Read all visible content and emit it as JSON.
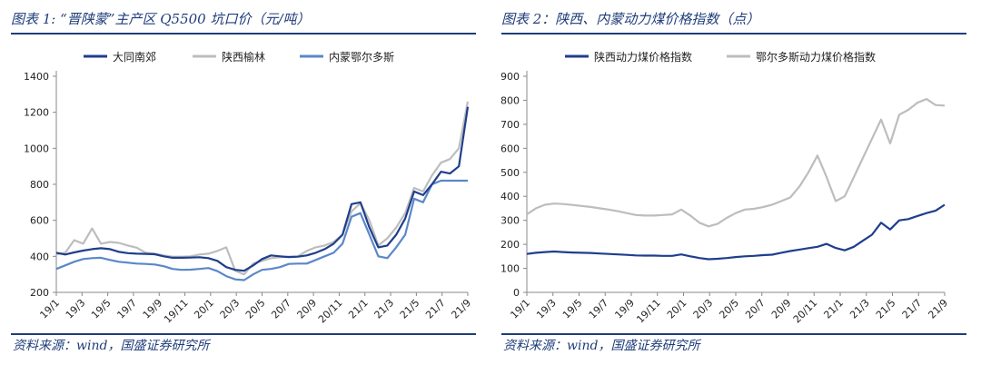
{
  "colors": {
    "navy": "#1f3e8c",
    "lightblue": "#5b87c9",
    "gray": "#bdbdbd",
    "rule": "#1f3d7a",
    "axis": "#888888"
  },
  "left": {
    "title": "图表 1: “晋陕蒙”主产区 Q5500 坑口价（元/吨）",
    "source": "资料来源：wind，国盛证券研究所"
  },
  "right": {
    "title": "图表 2：陕西、内蒙动力煤价格指数（点）",
    "source": "资料来源：wind，国盛证券研究所"
  },
  "chart_data": [
    {
      "type": "line",
      "title": "",
      "xlabel": "",
      "ylabel": "",
      "ylim": [
        200,
        1400
      ],
      "yticks": [
        200,
        400,
        600,
        800,
        1000,
        1200,
        1400
      ],
      "xticks": [
        "19/1",
        "19/3",
        "19/5",
        "19/7",
        "19/9",
        "19/11",
        "20/1",
        "20/3",
        "20/5",
        "20/7",
        "20/9",
        "20/11",
        "21/1",
        "21/3",
        "21/5",
        "21/7",
        "21/9"
      ],
      "legend_position": "top",
      "grid": false,
      "series": [
        {
          "name": "大同南郊",
          "color": "#1f3e8c",
          "values": [
            420,
            410,
            422,
            432,
            440,
            445,
            440,
            425,
            418,
            415,
            414,
            412,
            400,
            392,
            392,
            393,
            395,
            390,
            375,
            340,
            325,
            320,
            350,
            385,
            405,
            400,
            396,
            398,
            405,
            420,
            440,
            470,
            520,
            690,
            700,
            560,
            450,
            460,
            520,
            610,
            760,
            740,
            800,
            870,
            860,
            900,
            1230
          ]
        },
        {
          "name": "陕西榆林",
          "color": "#bdbdbd",
          "values": [
            412,
            420,
            490,
            470,
            555,
            470,
            480,
            475,
            460,
            448,
            420,
            415,
            405,
            398,
            398,
            400,
            410,
            415,
            430,
            450,
            320,
            300,
            360,
            375,
            390,
            395,
            398,
            400,
            430,
            450,
            460,
            480,
            520,
            650,
            695,
            600,
            460,
            500,
            560,
            640,
            780,
            760,
            850,
            920,
            940,
            1000,
            1260
          ]
        },
        {
          "name": "内蒙鄂尔多斯",
          "color": "#5b87c9",
          "values": [
            330,
            350,
            370,
            385,
            390,
            392,
            380,
            370,
            365,
            360,
            358,
            355,
            345,
            330,
            325,
            326,
            330,
            335,
            318,
            290,
            272,
            268,
            300,
            325,
            330,
            340,
            358,
            360,
            360,
            380,
            400,
            420,
            470,
            620,
            640,
            520,
            400,
            390,
            450,
            520,
            720,
            700,
            800,
            820,
            820,
            820,
            820
          ]
        }
      ]
    },
    {
      "type": "line",
      "title": "",
      "xlabel": "",
      "ylabel": "",
      "ylim": [
        0,
        900
      ],
      "yticks": [
        0,
        100,
        200,
        300,
        400,
        500,
        600,
        700,
        800,
        900
      ],
      "xticks": [
        "19/1",
        "19/3",
        "19/5",
        "19/7",
        "19/9",
        "19/11",
        "20/1",
        "20/3",
        "20/5",
        "20/7",
        "20/9",
        "20/11",
        "21/1",
        "21/3",
        "21/5",
        "21/7",
        "21/9"
      ],
      "legend_position": "top",
      "grid": false,
      "series": [
        {
          "name": "陕西动力煤价格指数",
          "color": "#1f3e8c",
          "values": [
            160,
            165,
            168,
            170,
            168,
            166,
            165,
            164,
            162,
            160,
            158,
            156,
            154,
            153,
            153,
            152,
            152,
            158,
            150,
            143,
            138,
            140,
            143,
            147,
            150,
            152,
            155,
            157,
            165,
            172,
            178,
            184,
            190,
            202,
            185,
            175,
            190,
            215,
            240,
            290,
            262,
            300,
            305,
            318,
            330,
            340,
            365
          ]
        },
        {
          "name": "鄂尔多斯动力煤价格指数",
          "color": "#bdbdbd",
          "values": [
            325,
            350,
            365,
            370,
            368,
            364,
            360,
            356,
            350,
            345,
            338,
            330,
            322,
            320,
            320,
            322,
            325,
            345,
            320,
            290,
            275,
            285,
            310,
            330,
            345,
            348,
            355,
            365,
            380,
            395,
            440,
            500,
            570,
            480,
            380,
            400,
            480,
            560,
            640,
            720,
            620,
            740,
            760,
            790,
            805,
            780,
            778
          ]
        }
      ]
    }
  ]
}
